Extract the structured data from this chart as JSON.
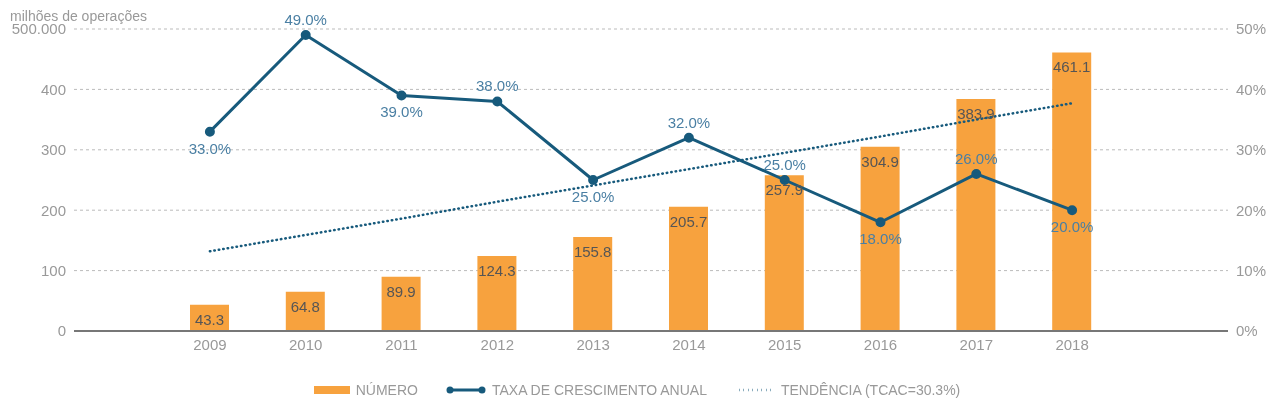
{
  "chart_data": {
    "type": "bar",
    "ylabel": "milhões de operações",
    "categories": [
      "2009",
      "2010",
      "2011",
      "2012",
      "2013",
      "2014",
      "2015",
      "2016",
      "2017",
      "2018"
    ],
    "series": [
      {
        "name": "NÚMERO",
        "color": "#f7a23e",
        "values": [
          43.3,
          64.8,
          89.9,
          124.3,
          155.8,
          205.7,
          257.9,
          304.9,
          383.9,
          461.1
        ],
        "value_labels": [
          "43.3",
          "64.8",
          "89.9",
          "124.3",
          "155.8",
          "205.7",
          "257.9",
          "304.9",
          "383.9",
          "461.1"
        ]
      },
      {
        "name": "TAXA DE CRESCIMENTO ANUAL",
        "type": "line",
        "axis": "y2",
        "color": "#175a7c",
        "marker": "circle",
        "line_style": "solid",
        "values": [
          33,
          49,
          39,
          38,
          25,
          32,
          25,
          18,
          26,
          20
        ],
        "value_labels": [
          "33.0%",
          "49.0%",
          "39.0%",
          "38.0%",
          "25.0%",
          "32.0%",
          "25.0%",
          "18.0%",
          "26.0%",
          "20.0%"
        ]
      },
      {
        "name": "TENDÊNCIA (TCAC=30.3%)",
        "type": "line",
        "axis": "y2",
        "color": "#175a7c",
        "marker": "none",
        "line_style": "dotted",
        "values": [
          13.2,
          15.9,
          18.6,
          21.4,
          24.1,
          26.8,
          29.5,
          32.2,
          35.0,
          37.7
        ]
      }
    ],
    "ylim": [
      0,
      500
    ],
    "yticks": [
      0,
      100,
      200,
      300,
      400,
      {
        "value": 500,
        "label": "500.000"
      }
    ],
    "y2lim": [
      0,
      50
    ],
    "y2ticks": [
      {
        "value": 0,
        "label": "0%"
      },
      {
        "value": 10,
        "label": "10%"
      },
      {
        "value": 20,
        "label": "20%"
      },
      {
        "value": 30,
        "label": "30%"
      },
      {
        "value": 40,
        "label": "40%"
      },
      {
        "value": 50,
        "label": "50%"
      }
    ],
    "grid": "y",
    "legend": "bottom"
  }
}
